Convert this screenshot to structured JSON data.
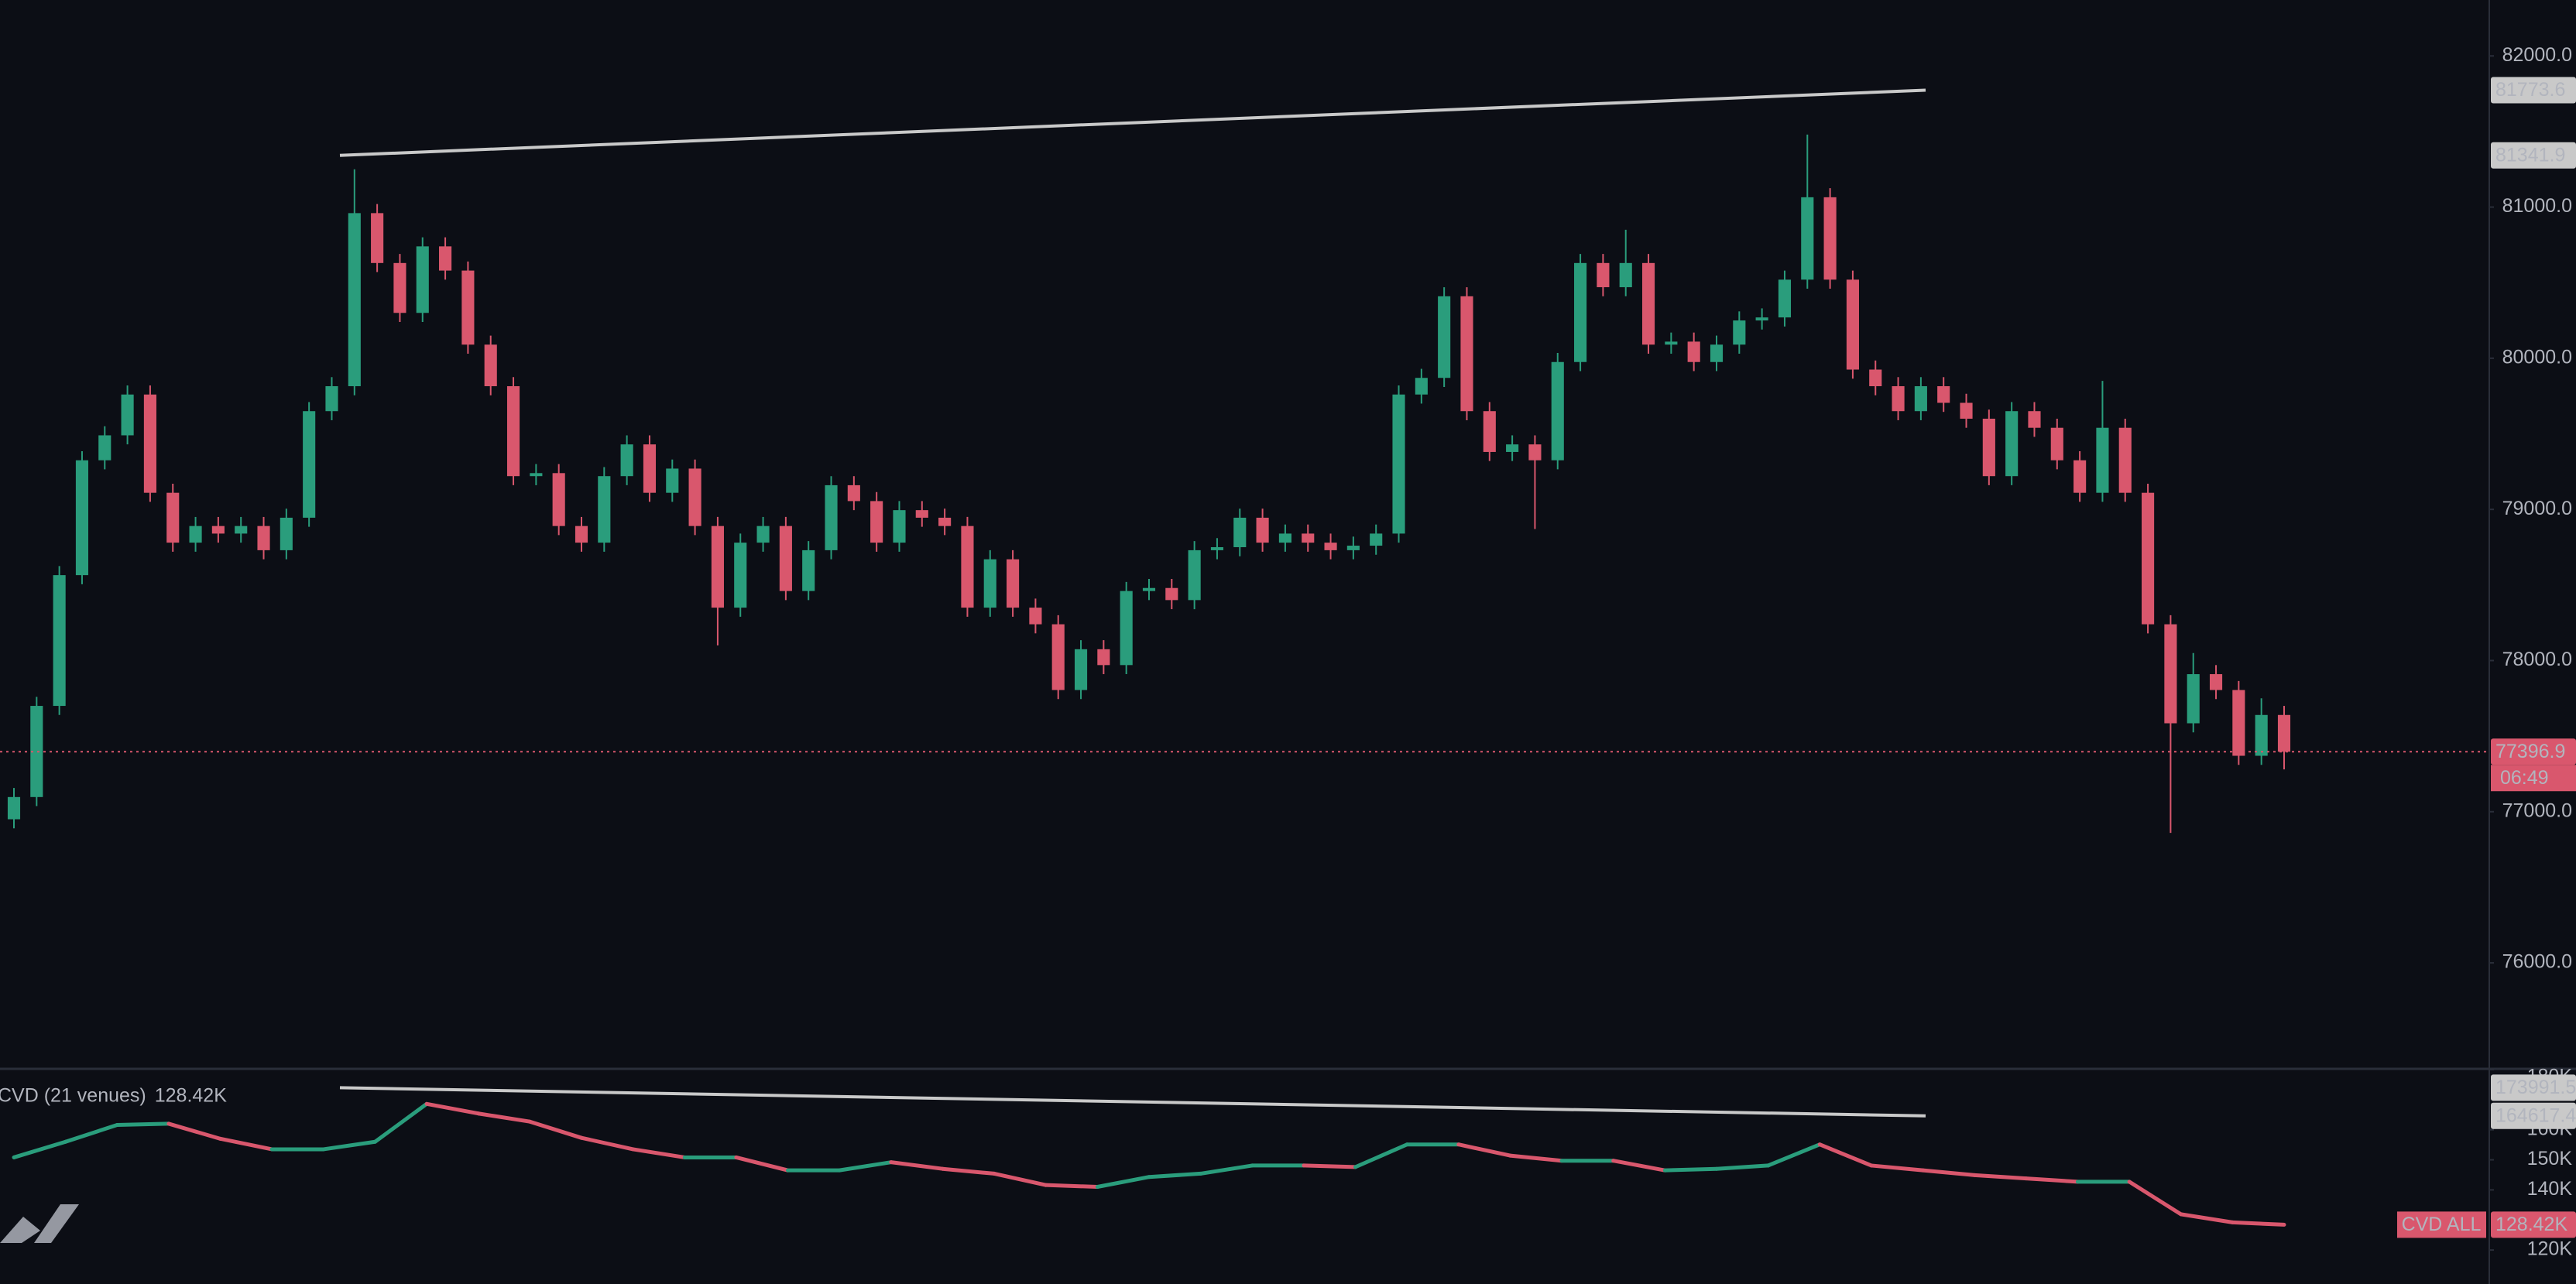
{
  "chart_data": [
    {
      "type": "candlestick",
      "up_color": "#2a9d7c",
      "down_color": "#d9576d",
      "open": [
        76950,
        77097,
        77700,
        78565,
        79325,
        79490,
        79760,
        79110,
        78780,
        78890,
        78840,
        78890,
        78730,
        78945,
        79650,
        79815,
        80960,
        80630,
        80300,
        80740,
        80580,
        80090,
        79815,
        79220,
        79240,
        78890,
        78780,
        79220,
        79430,
        79110,
        79270,
        78890,
        78350,
        78780,
        78890,
        78460,
        78730,
        79160,
        79055,
        78780,
        78995,
        78945,
        78890,
        78350,
        78670,
        78350,
        78240,
        77805,
        78075,
        77970,
        78460,
        78480,
        78400,
        78730,
        78750,
        78945,
        78780,
        78840,
        78780,
        78730,
        78760,
        78840,
        79760,
        79870,
        80410,
        79650,
        79380,
        79430,
        79325,
        79975,
        80630,
        80470,
        80630,
        80090,
        80110,
        79975,
        80090,
        80250,
        80270,
        80520,
        81065,
        80520,
        79925,
        79815,
        79650,
        79815,
        79705,
        79600,
        79220,
        79650,
        79540,
        79325,
        79110,
        79540,
        79110,
        78240,
        77585,
        77910,
        77805,
        77370,
        77640
      ],
      "high": [
        77157,
        77760,
        78625,
        79385,
        79550,
        79820,
        79820,
        79170,
        78950,
        78950,
        78950,
        78950,
        79005,
        79710,
        79875,
        81250,
        81020,
        80690,
        80800,
        80800,
        80640,
        80150,
        79875,
        79300,
        79300,
        78950,
        79280,
        79490,
        79490,
        79330,
        79330,
        78950,
        78840,
        78950,
        78950,
        78790,
        79220,
        79220,
        79115,
        79055,
        79055,
        79005,
        78950,
        78730,
        78730,
        78410,
        78300,
        78135,
        78135,
        78520,
        78540,
        78540,
        78790,
        78810,
        79005,
        79005,
        78900,
        78900,
        78840,
        78820,
        78900,
        79820,
        79930,
        80470,
        80470,
        79710,
        79490,
        79490,
        80035,
        80690,
        80690,
        80850,
        80690,
        80170,
        80170,
        80150,
        80310,
        80330,
        80580,
        81480,
        81125,
        80580,
        79985,
        79875,
        79875,
        79875,
        79765,
        79660,
        79710,
        79710,
        79600,
        79385,
        79850,
        79600,
        79170,
        78300,
        78050,
        77970,
        77865,
        77750,
        77700
      ],
      "low": [
        76890,
        77037,
        77640,
        78505,
        79265,
        79430,
        79050,
        78720,
        78720,
        78780,
        78780,
        78670,
        78670,
        78885,
        79590,
        79755,
        80570,
        80240,
        80240,
        80520,
        80030,
        79755,
        79160,
        79160,
        78830,
        78720,
        78720,
        79160,
        79050,
        79050,
        78830,
        78100,
        78290,
        78720,
        78400,
        78400,
        78670,
        78995,
        78720,
        78720,
        78885,
        78830,
        78290,
        78290,
        78290,
        78180,
        77745,
        77745,
        77910,
        77910,
        78400,
        78340,
        78340,
        78670,
        78690,
        78720,
        78720,
        78720,
        78670,
        78670,
        78700,
        78780,
        79700,
        79810,
        79590,
        79320,
        79320,
        78870,
        79265,
        79915,
        80410,
        80410,
        80030,
        80030,
        79915,
        79915,
        80030,
        80190,
        80210,
        80460,
        80460,
        79865,
        79755,
        79590,
        79590,
        79645,
        79540,
        79160,
        79160,
        79480,
        79265,
        79050,
        79050,
        79050,
        78180,
        76860,
        77525,
        77745,
        77310,
        77310,
        77280
      ],
      "close": [
        77097,
        77700,
        78565,
        79325,
        79490,
        79760,
        79110,
        78780,
        78890,
        78840,
        78890,
        78730,
        78945,
        79650,
        79815,
        80960,
        80630,
        80300,
        80740,
        80580,
        80090,
        79815,
        79220,
        79240,
        78890,
        78780,
        79220,
        79430,
        79110,
        79270,
        78890,
        78350,
        78780,
        78890,
        78460,
        78730,
        79160,
        79055,
        78780,
        78995,
        78945,
        78890,
        78350,
        78670,
        78350,
        78240,
        77805,
        78075,
        77970,
        78460,
        78480,
        78400,
        78730,
        78750,
        78945,
        78780,
        78840,
        78780,
        78730,
        78760,
        78840,
        79760,
        79870,
        80410,
        79650,
        79380,
        79430,
        79325,
        79975,
        80630,
        80470,
        80630,
        80090,
        80110,
        79975,
        80090,
        80250,
        80270,
        80520,
        81065,
        80520,
        79925,
        79815,
        79650,
        79815,
        79705,
        79600,
        79220,
        79650,
        79540,
        79325,
        79110,
        79540,
        79110,
        78240,
        77585,
        77910,
        77805,
        77370,
        77640,
        77396.9
      ],
      "ylim": [
        75304,
        82370
      ],
      "yticks": [
        {
          "value": 76000,
          "label": "76000.0"
        },
        {
          "value": 77000,
          "label": "77000.0"
        },
        {
          "value": 78000,
          "label": "78000.0"
        },
        {
          "value": 79000,
          "label": "79000.0"
        },
        {
          "value": 80000,
          "label": "80000.0"
        },
        {
          "value": 81000,
          "label": "81000.0"
        },
        {
          "value": 82000,
          "label": "82000.0"
        }
      ],
      "trendline": {
        "start": 81341.9,
        "end": 81773.6,
        "color": "#c9c9c9"
      },
      "last_price": 77396.9,
      "countdown": "06:49",
      "last_color": "#d9576d"
    },
    {
      "type": "line",
      "title": "CVD (21 venues)",
      "current": {
        "value": 128420,
        "label": "128.42K"
      },
      "badge": "CVD ALL",
      "up_color": "#2a9d7c",
      "down_color": "#d9576d",
      "values": [
        150800,
        156000,
        161600,
        162000,
        157000,
        153500,
        153500,
        156000,
        168600,
        165400,
        162700,
        157300,
        153500,
        150800,
        150800,
        146500,
        146500,
        149200,
        147000,
        145400,
        141600,
        141000,
        144300,
        145400,
        148100,
        148100,
        147600,
        155100,
        155100,
        151400,
        149700,
        149700,
        146500,
        147000,
        148100,
        155100,
        148100,
        146500,
        144900,
        143800,
        142700,
        142700,
        131900,
        129200,
        128420
      ],
      "ylim": [
        108700,
        180000
      ],
      "yticks": [
        {
          "value": 120000,
          "label": "120K"
        },
        {
          "value": 140000,
          "label": "140K"
        },
        {
          "value": 150000,
          "label": "150K"
        },
        {
          "value": 160000,
          "label": "160K"
        },
        {
          "value": 180000,
          "label": "180K"
        }
      ],
      "trendline": {
        "start": 173991.5,
        "end": 164617.4,
        "color": "#c9c9c9"
      }
    }
  ]
}
